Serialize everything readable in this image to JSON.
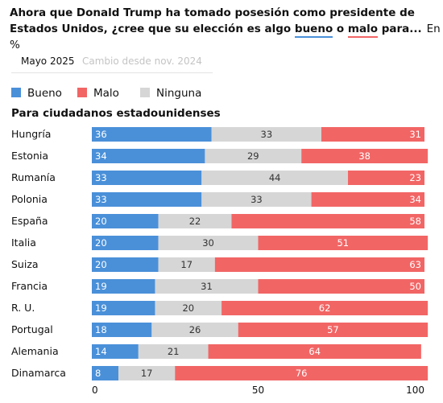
{
  "header": {
    "title_part1": "Ahora que Donald Trump ha tomado posesión como presidente de Estados Unidos, ¿cree que su elección es algo ",
    "title_good": "bueno",
    "title_or": " o ",
    "title_bad": "malo",
    "title_part2": " para...",
    "title_unit": "En %"
  },
  "tabs": [
    {
      "label": "Mayo 2025",
      "active": true
    },
    {
      "label": "Cambio desde nov. 2024",
      "active": false
    }
  ],
  "legend": [
    {
      "label": "Bueno",
      "color": "#4a90d9"
    },
    {
      "label": "Malo",
      "color": "#f26565"
    },
    {
      "label": "Ninguna",
      "color": "#d6d6d6"
    }
  ],
  "chart_data": {
    "type": "bar",
    "orientation": "horizontal",
    "stacked": true,
    "subtitle": "Para ciudadanos estadounidenses",
    "categories": [
      "Hungría",
      "Estonia",
      "Rumanía",
      "Polonia",
      "España",
      "Italia",
      "Suiza",
      "Francia",
      "R. U.",
      "Portugal",
      "Alemania",
      "Dinamarca"
    ],
    "series": [
      {
        "name": "Bueno",
        "color": "#4a90d9",
        "label_color": "#ffffff",
        "values": [
          36,
          34,
          33,
          33,
          20,
          20,
          20,
          19,
          19,
          18,
          14,
          8
        ]
      },
      {
        "name": "Ninguna",
        "color": "#d6d6d6",
        "label_color": "#333333",
        "values": [
          33,
          29,
          44,
          33,
          22,
          30,
          17,
          31,
          20,
          26,
          21,
          17
        ]
      },
      {
        "name": "Malo",
        "color": "#f26565",
        "label_color": "#ffffff",
        "values": [
          31,
          38,
          23,
          34,
          58,
          51,
          63,
          50,
          62,
          57,
          64,
          76
        ]
      }
    ],
    "xlim": [
      0,
      100
    ],
    "xticks": [
      "0",
      "50",
      "100"
    ],
    "tick_values": [
      0,
      50,
      100
    ],
    "legend_position": "top-left",
    "grid": false
  }
}
